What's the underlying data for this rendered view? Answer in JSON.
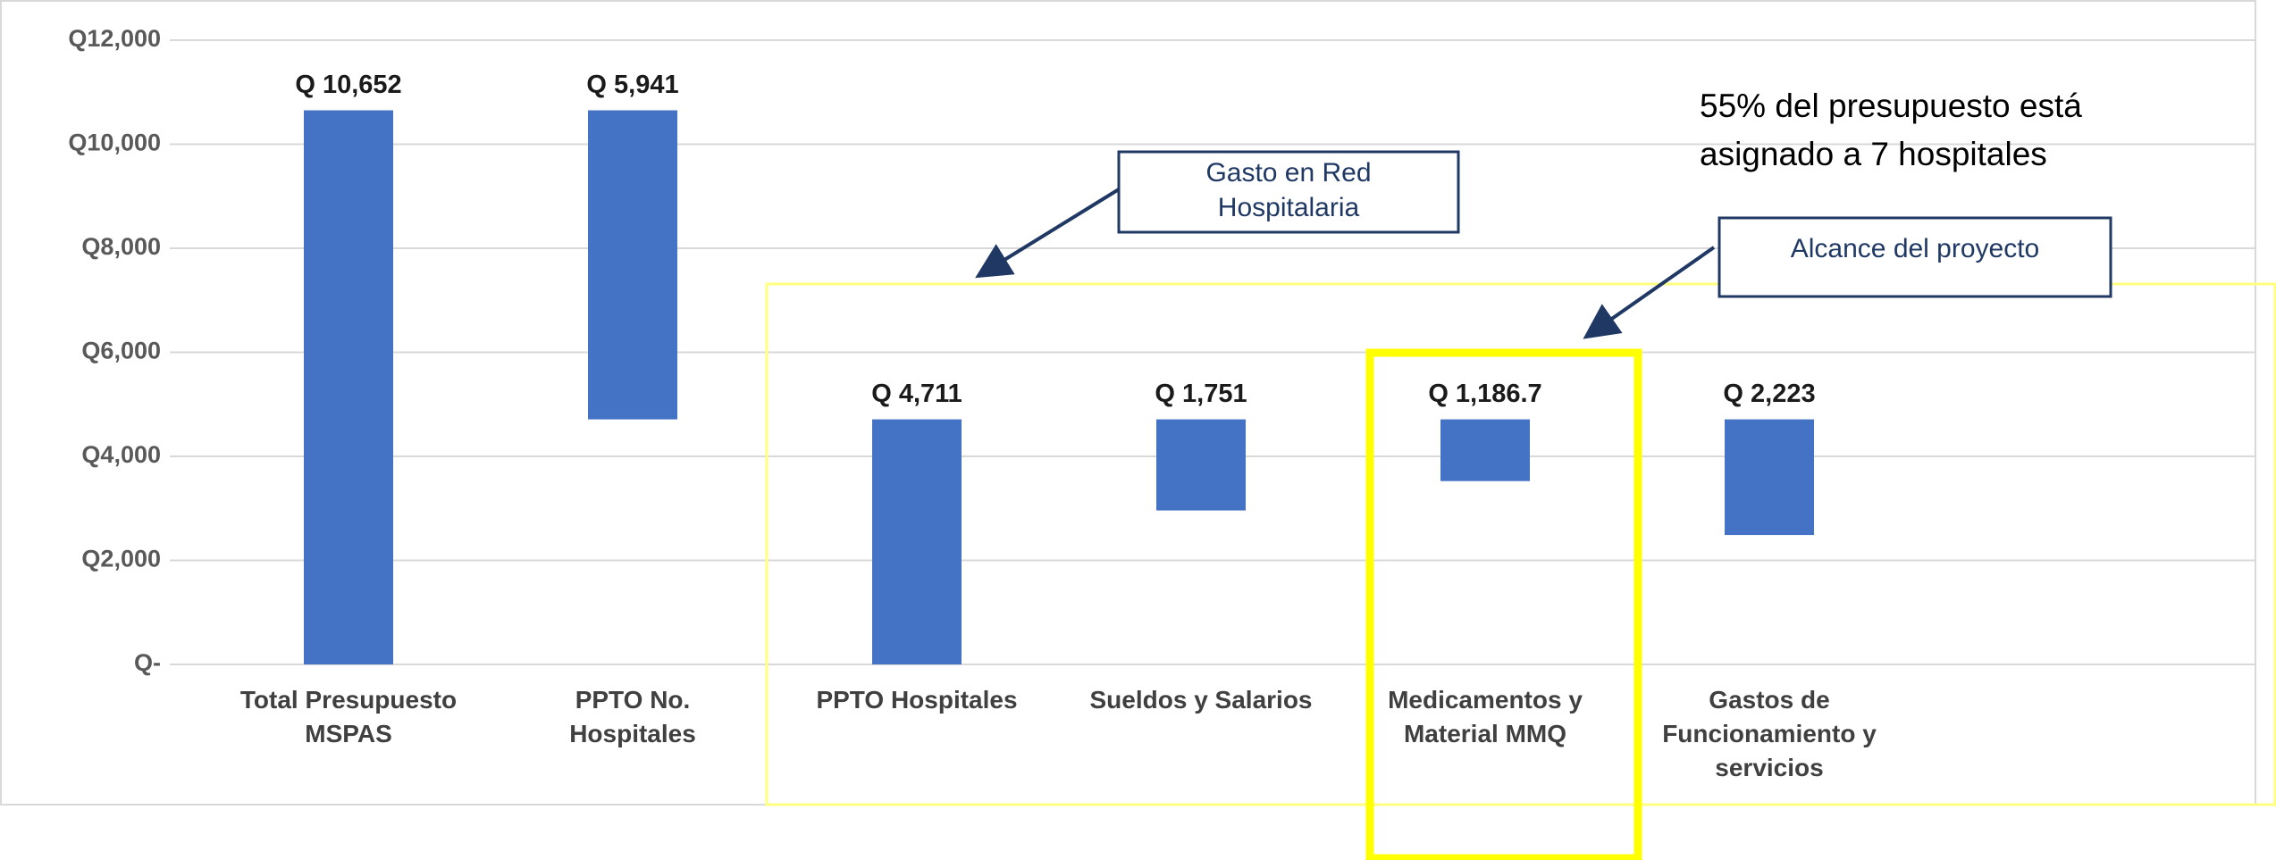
{
  "chart_data": {
    "type": "waterfall",
    "categories": [
      "Total Presupuesto\nMSPAS",
      "PPTO No.\nHospitales",
      "PPTO Hospitales",
      "Sueldos y Salarios",
      "Medicamentos y\nMaterial MMQ",
      "Gastos de\nFuncionamiento y\nservicios"
    ],
    "values": [
      10652,
      5941,
      4711,
      1751,
      1186.7,
      2223
    ],
    "value_labels": [
      "Q 10,652",
      "Q 5,941",
      "Q 4,711",
      "Q 1,751",
      "Q 1,186.7",
      "Q 2,223"
    ],
    "measure": [
      "total",
      "decrease",
      "total",
      "part",
      "part",
      "part"
    ],
    "color": "#4472c4",
    "ylim": [
      0,
      12000
    ],
    "yticks": [
      {
        "value": 0,
        "label": "Q-"
      },
      {
        "value": 2000,
        "label": "Q2,000"
      },
      {
        "value": 4000,
        "label": "Q4,000"
      },
      {
        "value": 6000,
        "label": "Q6,000"
      },
      {
        "value": 8000,
        "label": "Q8,000"
      },
      {
        "value": 10000,
        "label": "Q10,000"
      },
      {
        "value": 12000,
        "label": "Q12,000"
      }
    ],
    "grid": true,
    "annotations": [
      "55% del presupuesto está\nasignado a  7 hospitales",
      "Gasto en Red\nHospitalaria",
      "Alcance del proyecto"
    ]
  }
}
